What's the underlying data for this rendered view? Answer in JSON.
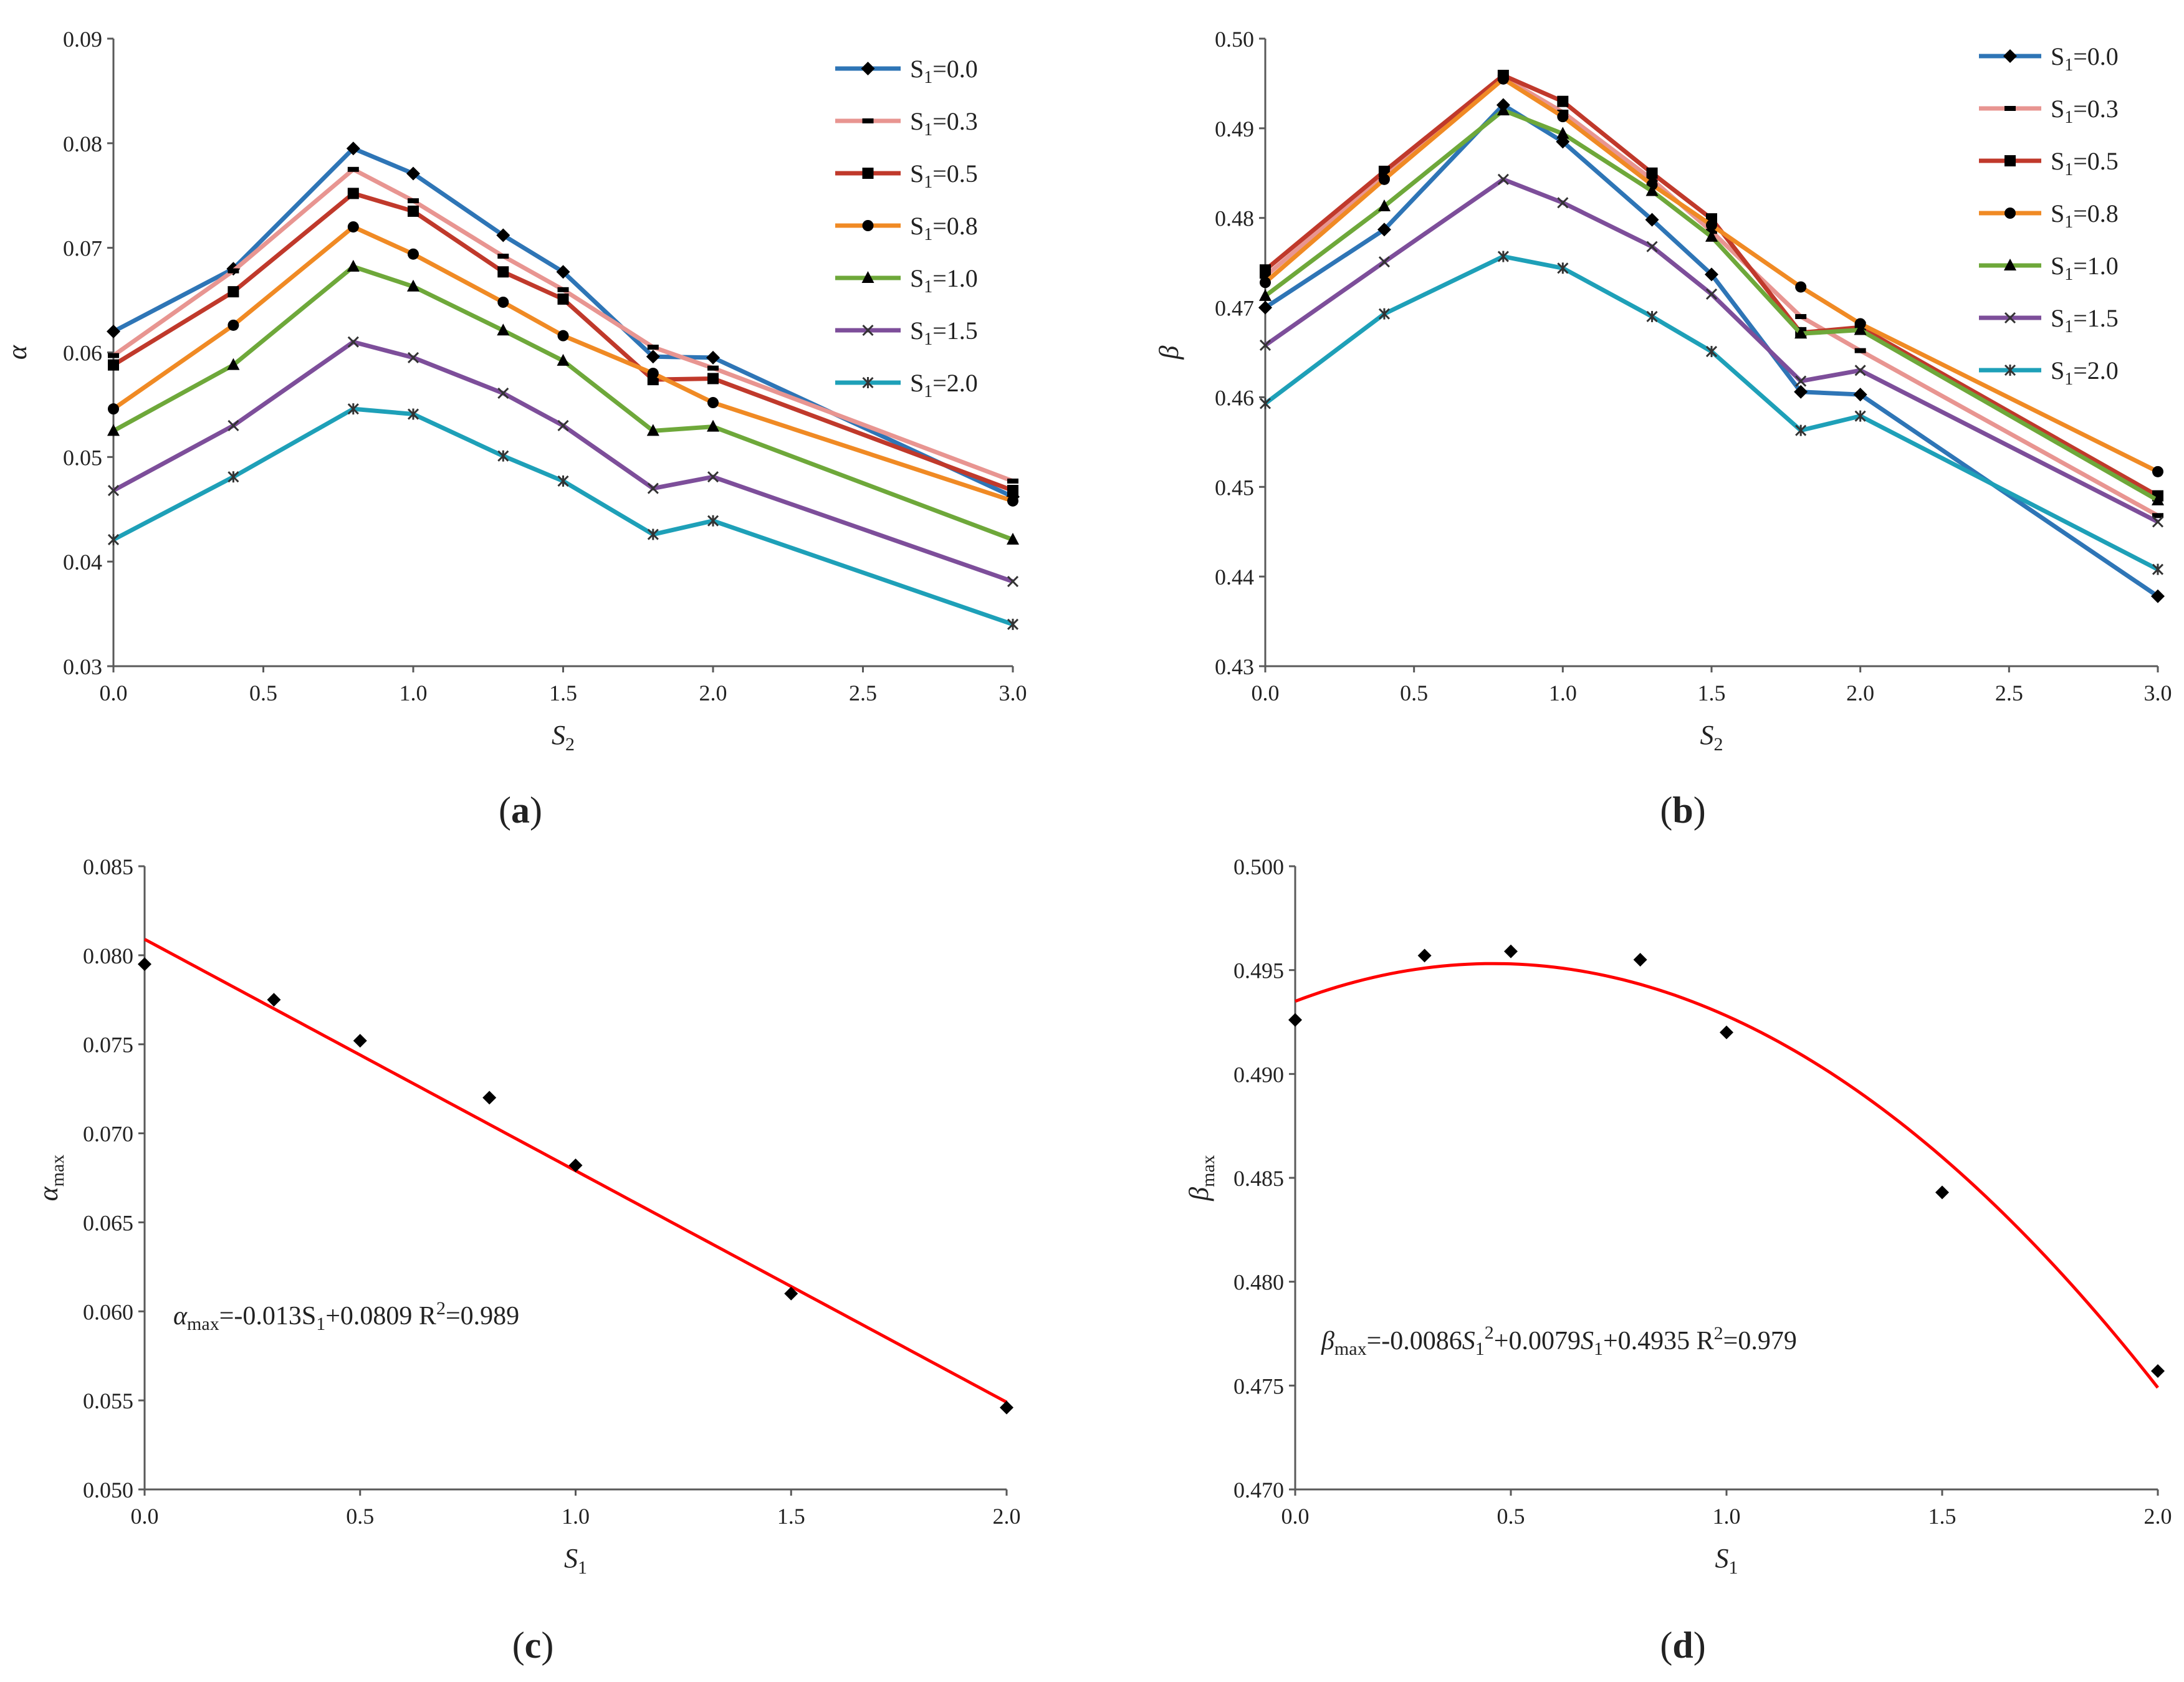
{
  "colors": {
    "s0": "#2E75B6",
    "s03": "#E89591",
    "s05": "#C0392B",
    "s08": "#F08A24",
    "s10": "#6EA83A",
    "s15": "#7D4E9A",
    "s20": "#1EA0B8",
    "fit": "#FF0000",
    "marker": "#000000"
  },
  "chart_data": [
    {
      "id": "a",
      "type": "line",
      "panel_label": "a",
      "xlabel": "S",
      "xlabel_sub": "2",
      "ylabel": "α",
      "xlim": [
        0,
        3
      ],
      "ylim": [
        0.03,
        0.09
      ],
      "xticks": [
        "0.0",
        "0.5",
        "1.0",
        "1.5",
        "2.0",
        "2.5",
        "3.0"
      ],
      "yticks": [
        "0.03",
        "0.04",
        "0.05",
        "0.06",
        "0.07",
        "0.08",
        "0.09"
      ],
      "legend_position": "top-right",
      "x": [
        0,
        0.4,
        0.8,
        1.0,
        1.3,
        1.5,
        1.8,
        2.0,
        3.0
      ],
      "series": [
        {
          "name_pre": "S",
          "name_sub": "1",
          "name_post": "=0.0",
          "color_key": "s0",
          "marker": "diamond",
          "values": [
            0.062,
            0.068,
            0.0795,
            0.0771,
            0.0712,
            0.0677,
            0.0596,
            0.0595,
            0.0462
          ]
        },
        {
          "name_pre": "S",
          "name_sub": "1",
          "name_post": "=0.3",
          "color_key": "s03",
          "marker": "dash",
          "values": [
            0.0597,
            0.0678,
            0.0775,
            0.0745,
            0.0692,
            0.066,
            0.0605,
            0.0585,
            0.0477
          ]
        },
        {
          "name_pre": "S",
          "name_sub": "1",
          "name_post": "=0.5",
          "color_key": "s05",
          "marker": "square",
          "values": [
            0.0588,
            0.0658,
            0.0752,
            0.0735,
            0.0677,
            0.0651,
            0.0574,
            0.0575,
            0.0468
          ]
        },
        {
          "name_pre": "S",
          "name_sub": "1",
          "name_post": "=0.8",
          "color_key": "s08",
          "marker": "circle",
          "values": [
            0.0546,
            0.0626,
            0.072,
            0.0694,
            0.0648,
            0.0616,
            0.058,
            0.0552,
            0.0458
          ]
        },
        {
          "name_pre": "S",
          "name_sub": "1",
          "name_post": "=1.0",
          "color_key": "s10",
          "marker": "triangle",
          "values": [
            0.0525,
            0.0588,
            0.0682,
            0.0663,
            0.0621,
            0.0592,
            0.0525,
            0.0529,
            0.0421
          ]
        },
        {
          "name_pre": "S",
          "name_sub": "1",
          "name_post": "=1.5",
          "color_key": "s15",
          "marker": "x",
          "values": [
            0.0468,
            0.053,
            0.061,
            0.0595,
            0.0561,
            0.053,
            0.047,
            0.0481,
            0.0381
          ]
        },
        {
          "name_pre": "S",
          "name_sub": "1",
          "name_post": "=2.0",
          "color_key": "s20",
          "marker": "star",
          "values": [
            0.0421,
            0.0481,
            0.0546,
            0.0541,
            0.0501,
            0.0477,
            0.0426,
            0.0439,
            0.034
          ]
        }
      ]
    },
    {
      "id": "b",
      "type": "line",
      "panel_label": "b",
      "xlabel": "S",
      "xlabel_sub": "2",
      "ylabel": "β",
      "xlim": [
        0,
        3
      ],
      "ylim": [
        0.43,
        0.5
      ],
      "xticks": [
        "0.0",
        "0.5",
        "1.0",
        "1.5",
        "2.0",
        "2.5",
        "3.0"
      ],
      "yticks": [
        "0.43",
        "0.44",
        "0.45",
        "0.46",
        "0.47",
        "0.48",
        "0.49",
        "0.50"
      ],
      "legend_position": "top-right",
      "x": [
        0,
        0.4,
        0.8,
        1.0,
        1.3,
        1.5,
        1.8,
        2.0,
        3.0
      ],
      "series": [
        {
          "name_pre": "S",
          "name_sub": "1",
          "name_post": "=0.0",
          "color_key": "s0",
          "marker": "diamond",
          "values": [
            0.47,
            0.4787,
            0.4926,
            0.4885,
            0.4798,
            0.4737,
            0.4606,
            0.4603,
            0.4378
          ]
        },
        {
          "name_pre": "S",
          "name_sub": "1",
          "name_post": "=0.3",
          "color_key": "s03",
          "marker": "dash",
          "values": [
            0.4735,
            0.4847,
            0.4957,
            0.4918,
            0.4843,
            0.4785,
            0.469,
            0.4652,
            0.4468
          ]
        },
        {
          "name_pre": "S",
          "name_sub": "1",
          "name_post": "=0.5",
          "color_key": "s05",
          "marker": "square",
          "values": [
            0.4742,
            0.4852,
            0.4959,
            0.493,
            0.485,
            0.4799,
            0.4672,
            0.4678,
            0.449
          ]
        },
        {
          "name_pre": "S",
          "name_sub": "1",
          "name_post": "=0.8",
          "color_key": "s08",
          "marker": "circle",
          "values": [
            0.4728,
            0.4843,
            0.4955,
            0.4913,
            0.4837,
            0.4792,
            0.4723,
            0.4682,
            0.4517
          ]
        },
        {
          "name_pre": "S",
          "name_sub": "1",
          "name_post": "=1.0",
          "color_key": "s10",
          "marker": "triangle",
          "values": [
            0.4713,
            0.4813,
            0.492,
            0.4894,
            0.483,
            0.4779,
            0.4671,
            0.4675,
            0.4485
          ]
        },
        {
          "name_pre": "S",
          "name_sub": "1",
          "name_post": "=1.5",
          "color_key": "s15",
          "marker": "x",
          "values": [
            0.4658,
            0.4751,
            0.4843,
            0.4817,
            0.4768,
            0.4715,
            0.4618,
            0.463,
            0.4461
          ]
        },
        {
          "name_pre": "S",
          "name_sub": "1",
          "name_post": "=2.0",
          "color_key": "s20",
          "marker": "star",
          "values": [
            0.4593,
            0.4693,
            0.4757,
            0.4744,
            0.469,
            0.4651,
            0.4563,
            0.4579,
            0.4408
          ]
        }
      ]
    },
    {
      "id": "c",
      "type": "scatter",
      "panel_label": "c",
      "xlabel": "S",
      "xlabel_sub": "1",
      "ylabel": "α",
      "ylabel_sub": "max",
      "xlim": [
        0,
        2
      ],
      "ylim": [
        0.05,
        0.085
      ],
      "xticks": [
        "0.0",
        "0.5",
        "1.0",
        "1.5",
        "2.0"
      ],
      "yticks": [
        "0.050",
        "0.055",
        "0.060",
        "0.065",
        "0.070",
        "0.075",
        "0.080",
        "0.085"
      ],
      "x": [
        0,
        0.3,
        0.5,
        0.8,
        1.0,
        1.5,
        2.0
      ],
      "y": [
        0.0795,
        0.0775,
        0.0752,
        0.072,
        0.0682,
        0.061,
        0.0546
      ],
      "fit": {
        "kind": "linear",
        "coeffs": [
          -0.013,
          0.0809
        ]
      },
      "equation": {
        "lhs_sym": "α",
        "lhs_sub": "max",
        "rhs_a": "=-0.013S",
        "rhs_sub": "1",
        "rhs_b": "+0.0809",
        "r2_pre": "R",
        "r2_sup": "2",
        "r2_post": "=0.989"
      }
    },
    {
      "id": "d",
      "type": "scatter",
      "panel_label": "d",
      "xlabel": "S",
      "xlabel_sub": "1",
      "ylabel": "β",
      "ylabel_sub": "max",
      "xlim": [
        0,
        2
      ],
      "ylim": [
        0.47,
        0.5
      ],
      "xticks": [
        "0.0",
        "0.5",
        "1.0",
        "1.5",
        "2.0"
      ],
      "yticks": [
        "0.470",
        "0.475",
        "0.480",
        "0.485",
        "0.490",
        "0.495",
        "0.500"
      ],
      "x": [
        0,
        0.3,
        0.5,
        0.8,
        1.0,
        1.5,
        2.0
      ],
      "y": [
        0.4926,
        0.4957,
        0.4959,
        0.4955,
        0.492,
        0.4843,
        0.4757
      ],
      "fit": {
        "kind": "quadratic",
        "coeffs": [
          -0.0086,
          0.0079,
          0.4935
        ]
      },
      "equation": {
        "lhs_sym": "β",
        "lhs_sub": "max",
        "rhs_a": "=-0.0086",
        "rhs_s": "S",
        "rhs_sub": "1",
        "rhs_sup": "2",
        "rhs_b": "+0.0079",
        "rhs_s2": "S",
        "rhs_sub2": "1",
        "rhs_c": "+0.4935",
        "r2_pre": "R",
        "r2_sup": "2",
        "r2_post": "=0.979"
      }
    }
  ]
}
